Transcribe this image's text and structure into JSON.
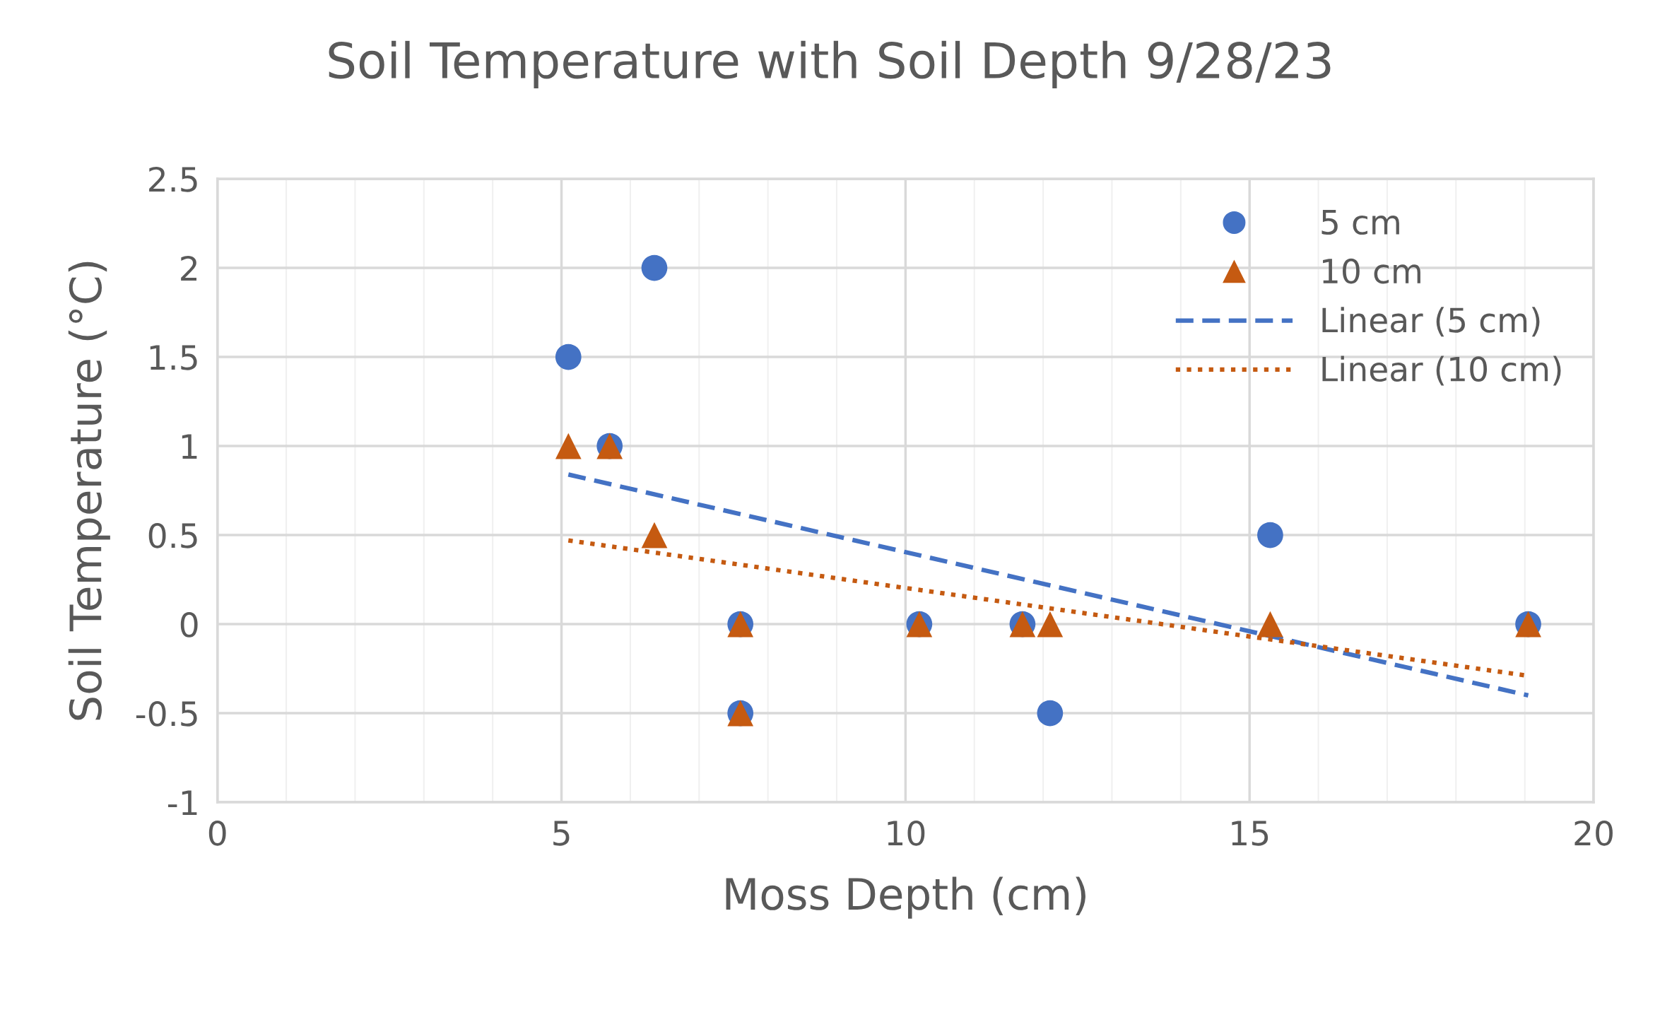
{
  "chart_data": {
    "type": "scatter",
    "title": "Soil Temperature with Soil Depth 9/28/23",
    "xlabel": "Moss Depth (cm)",
    "ylabel": "Soil Temperature (°C)",
    "xlim": [
      0,
      20
    ],
    "xticks": [
      0,
      5,
      10,
      15,
      20
    ],
    "ylim": [
      -1,
      2.5
    ],
    "yticks": [
      -1,
      -0.5,
      0,
      0.5,
      1,
      1.5,
      2,
      2.5
    ],
    "grid": true,
    "legend": "top right",
    "series": [
      {
        "name": "5 cm",
        "marker": "circle",
        "color": "#4472c4",
        "x": [
          5.1,
          6.35,
          5.7,
          7.6,
          7.6,
          10.2,
          11.7,
          12.1,
          15.3,
          19.05
        ],
        "values": [
          1.5,
          2,
          1,
          0,
          -0.5,
          0,
          0,
          -0.5,
          0.5,
          0
        ]
      },
      {
        "name": "10 cm",
        "marker": "triangle",
        "color": "#c55a11",
        "x": [
          5.1,
          5.7,
          6.35,
          7.6,
          7.6,
          10.2,
          11.7,
          12.1,
          15.3,
          19.05
        ],
        "values": [
          1,
          1,
          0.5,
          0,
          -0.5,
          0,
          0,
          0,
          0,
          0
        ]
      },
      {
        "name": "Linear (5 cm)",
        "type": "line",
        "line_style": "dashed",
        "marker": "none",
        "color": "#4472c4",
        "x": [
          5.1,
          19.05
        ],
        "values": [
          0.84,
          -0.4
        ]
      },
      {
        "name": "Linear (10 cm)",
        "type": "line",
        "line_style": "dotted",
        "marker": "none",
        "color": "#c55a11",
        "x": [
          5.1,
          19.05
        ],
        "values": [
          0.47,
          -0.29
        ]
      }
    ]
  }
}
